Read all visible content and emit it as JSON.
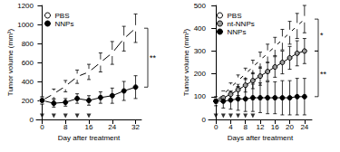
{
  "chart_data": [
    {
      "type": "line",
      "x_label": "Day after treatment",
      "y_label": "Tumor volume (mm³)",
      "x": [
        0,
        4,
        8,
        12,
        16,
        20,
        24,
        28,
        32
      ],
      "series": [
        {
          "name": "PBS",
          "color": "#000000",
          "marker": "open-circle",
          "values": [
            200,
            270,
            350,
            450,
            500,
            600,
            700,
            850,
            960
          ],
          "errors": [
            40,
            50,
            60,
            70,
            80,
            100,
            120,
            130,
            150
          ]
        },
        {
          "name": "NNPs",
          "color": "#000000",
          "marker": "circle",
          "values": [
            200,
            170,
            180,
            220,
            200,
            230,
            250,
            300,
            340
          ],
          "errors": [
            30,
            40,
            40,
            50,
            50,
            60,
            80,
            100,
            120
          ]
        }
      ],
      "treatment_days": [
        0,
        4,
        8,
        12,
        16
      ],
      "annotations": [
        {
          "text": "**",
          "y": [
            340,
            960
          ]
        }
      ],
      "xlim": [
        -2,
        34
      ],
      "xticks": [
        0,
        8,
        16,
        24,
        32
      ],
      "ylim": [
        0,
        1200
      ],
      "yticks": [
        0,
        200,
        400,
        600,
        800,
        1000,
        1200
      ],
      "grid": false,
      "legend": "upper left"
    },
    {
      "type": "line",
      "x_label": "Days after treatment",
      "y_label": "Tumor volume (mm³)",
      "x": [
        0,
        2,
        4,
        6,
        8,
        10,
        12,
        14,
        16,
        18,
        20,
        22,
        24
      ],
      "series": [
        {
          "name": "PBS",
          "color": "#000000",
          "marker": "open-circle",
          "values": [
            80,
            110,
            140,
            170,
            200,
            230,
            260,
            290,
            320,
            350,
            380,
            410,
            440
          ],
          "errors": [
            10,
            15,
            20,
            25,
            25,
            30,
            35,
            40,
            40,
            45,
            50,
            55,
            60
          ]
        },
        {
          "name": "nt-NNPs",
          "color": "#999999",
          "marker": "circle",
          "values": [
            80,
            95,
            110,
            130,
            150,
            170,
            190,
            210,
            230,
            250,
            270,
            290,
            300
          ],
          "errors": [
            10,
            15,
            20,
            25,
            30,
            35,
            40,
            40,
            45,
            50,
            50,
            55,
            55
          ]
        },
        {
          "name": "NNPs",
          "color": "#000000",
          "marker": "circle",
          "values": [
            80,
            80,
            85,
            90,
            90,
            95,
            95,
            95,
            95,
            95,
            95,
            100,
            100
          ],
          "errors": [
            20,
            30,
            40,
            50,
            55,
            60,
            65,
            70,
            70,
            75,
            75,
            80,
            80
          ]
        }
      ],
      "treatment_days": [
        0,
        2,
        4,
        6,
        8,
        10
      ],
      "annotations": [
        {
          "text": "*",
          "y": [
            300,
            440
          ]
        },
        {
          "text": "**",
          "y": [
            100,
            300
          ]
        }
      ],
      "xlim": [
        -2,
        26
      ],
      "xticks": [
        0,
        4,
        8,
        12,
        16,
        20,
        24
      ],
      "ylim": [
        0,
        500
      ],
      "yticks": [
        0,
        100,
        200,
        300,
        400,
        500
      ],
      "grid": false,
      "legend": "upper left"
    }
  ]
}
